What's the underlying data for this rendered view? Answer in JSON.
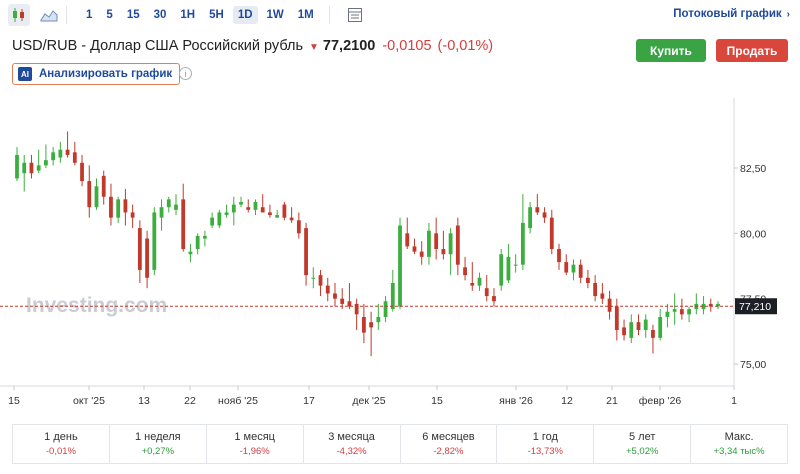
{
  "toolbar": {
    "timeframes": [
      "1",
      "5",
      "15",
      "30",
      "1H",
      "5H",
      "1D",
      "1W",
      "1M"
    ],
    "active_timeframe": "1D",
    "stream_link": "Потоковый график"
  },
  "instrument": {
    "name": "USD/RUB - Доллар США Российский рубль",
    "price": "77,2100",
    "change": "-0,0105",
    "change_pct": "(-0,01%)"
  },
  "actions": {
    "buy": "Купить",
    "sell": "Продать",
    "analyze": "Анализировать график",
    "ai_badge": "AI"
  },
  "chart_data": {
    "type": "candlestick",
    "watermark": "Investing.com",
    "y_ticks": [
      "82,50",
      "80,00",
      "77,50",
      "75,00"
    ],
    "y_tick_values": [
      82.5,
      80.0,
      77.5,
      75.0
    ],
    "current_label": "77,210",
    "current_value": 77.21,
    "x_ticks": [
      "15",
      "окт '25",
      "13",
      "22",
      "нояб '25",
      "17",
      "дек '25",
      "15",
      "янв '26",
      "12",
      "21",
      "февр '26",
      "1"
    ],
    "colors": {
      "up": "#3cae3f",
      "down": "#c0392b",
      "price_line": "#c0392b"
    },
    "candles": [
      {
        "o": 82.1,
        "h": 83.3,
        "l": 82.0,
        "c": 83.0
      },
      {
        "o": 82.3,
        "h": 83.0,
        "l": 81.6,
        "c": 82.7
      },
      {
        "o": 82.7,
        "h": 83.0,
        "l": 82.1,
        "c": 82.3
      },
      {
        "o": 82.4,
        "h": 83.2,
        "l": 82.3,
        "c": 82.6
      },
      {
        "o": 82.6,
        "h": 83.4,
        "l": 82.5,
        "c": 82.8
      },
      {
        "o": 82.8,
        "h": 83.3,
        "l": 82.6,
        "c": 83.1
      },
      {
        "o": 82.9,
        "h": 83.5,
        "l": 82.7,
        "c": 83.2
      },
      {
        "o": 83.2,
        "h": 83.9,
        "l": 82.9,
        "c": 83.0
      },
      {
        "o": 83.1,
        "h": 83.5,
        "l": 82.6,
        "c": 82.7
      },
      {
        "o": 82.7,
        "h": 83.0,
        "l": 81.8,
        "c": 82.0
      },
      {
        "o": 82.0,
        "h": 82.6,
        "l": 80.6,
        "c": 81.0
      },
      {
        "o": 81.0,
        "h": 82.1,
        "l": 80.9,
        "c": 81.8
      },
      {
        "o": 82.2,
        "h": 82.4,
        "l": 81.1,
        "c": 81.4
      },
      {
        "o": 81.4,
        "h": 81.9,
        "l": 80.3,
        "c": 80.6
      },
      {
        "o": 80.6,
        "h": 81.4,
        "l": 80.4,
        "c": 81.3
      },
      {
        "o": 81.3,
        "h": 81.7,
        "l": 80.3,
        "c": 80.8
      },
      {
        "o": 80.8,
        "h": 81.1,
        "l": 80.2,
        "c": 80.6
      },
      {
        "o": 80.2,
        "h": 80.5,
        "l": 78.1,
        "c": 78.6
      },
      {
        "o": 79.8,
        "h": 80.1,
        "l": 77.9,
        "c": 78.3
      },
      {
        "o": 78.6,
        "h": 81.0,
        "l": 78.4,
        "c": 80.8
      },
      {
        "o": 80.6,
        "h": 81.3,
        "l": 80.1,
        "c": 81.0
      },
      {
        "o": 81.0,
        "h": 81.4,
        "l": 80.8,
        "c": 81.3
      },
      {
        "o": 80.9,
        "h": 81.5,
        "l": 80.7,
        "c": 81.1
      },
      {
        "o": 81.3,
        "h": 81.9,
        "l": 79.3,
        "c": 79.4
      },
      {
        "o": 79.2,
        "h": 79.6,
        "l": 78.9,
        "c": 79.3
      },
      {
        "o": 79.4,
        "h": 80.0,
        "l": 79.2,
        "c": 79.9
      },
      {
        "o": 79.8,
        "h": 80.1,
        "l": 79.5,
        "c": 79.9
      },
      {
        "o": 80.3,
        "h": 80.8,
        "l": 80.2,
        "c": 80.6
      },
      {
        "o": 80.3,
        "h": 80.9,
        "l": 80.2,
        "c": 80.8
      },
      {
        "o": 80.7,
        "h": 81.1,
        "l": 80.6,
        "c": 80.8
      },
      {
        "o": 80.8,
        "h": 81.4,
        "l": 80.3,
        "c": 81.1
      },
      {
        "o": 81.1,
        "h": 81.4,
        "l": 81.0,
        "c": 81.2
      },
      {
        "o": 81.0,
        "h": 81.3,
        "l": 80.8,
        "c": 80.9
      },
      {
        "o": 80.9,
        "h": 81.3,
        "l": 80.7,
        "c": 81.2
      },
      {
        "o": 81.0,
        "h": 81.5,
        "l": 80.8,
        "c": 80.8
      },
      {
        "o": 80.8,
        "h": 81.1,
        "l": 80.6,
        "c": 80.7
      },
      {
        "o": 80.6,
        "h": 80.9,
        "l": 80.6,
        "c": 80.7
      },
      {
        "o": 81.1,
        "h": 81.2,
        "l": 80.5,
        "c": 80.6
      },
      {
        "o": 80.6,
        "h": 81.0,
        "l": 80.4,
        "c": 80.5
      },
      {
        "o": 80.5,
        "h": 80.8,
        "l": 79.8,
        "c": 80.0
      },
      {
        "o": 80.2,
        "h": 80.4,
        "l": 78.0,
        "c": 78.4
      },
      {
        "o": 78.3,
        "h": 78.7,
        "l": 77.9,
        "c": 78.3
      },
      {
        "o": 78.4,
        "h": 78.6,
        "l": 77.6,
        "c": 78.0
      },
      {
        "o": 78.0,
        "h": 78.3,
        "l": 77.4,
        "c": 77.7
      },
      {
        "o": 77.7,
        "h": 78.1,
        "l": 77.2,
        "c": 77.5
      },
      {
        "o": 77.5,
        "h": 77.9,
        "l": 77.1,
        "c": 77.3
      },
      {
        "o": 77.4,
        "h": 78.1,
        "l": 77.1,
        "c": 77.2
      },
      {
        "o": 77.3,
        "h": 77.5,
        "l": 76.3,
        "c": 76.9
      },
      {
        "o": 76.8,
        "h": 77.3,
        "l": 75.8,
        "c": 76.2
      },
      {
        "o": 76.6,
        "h": 77.0,
        "l": 75.3,
        "c": 76.4
      },
      {
        "o": 76.6,
        "h": 77.3,
        "l": 76.3,
        "c": 76.8
      },
      {
        "o": 76.8,
        "h": 77.6,
        "l": 76.6,
        "c": 77.4
      },
      {
        "o": 77.1,
        "h": 78.6,
        "l": 77.0,
        "c": 78.1
      },
      {
        "o": 77.2,
        "h": 80.6,
        "l": 77.1,
        "c": 80.3
      },
      {
        "o": 80.0,
        "h": 80.6,
        "l": 79.4,
        "c": 79.5
      },
      {
        "o": 79.5,
        "h": 79.8,
        "l": 79.2,
        "c": 79.3
      },
      {
        "o": 79.3,
        "h": 79.7,
        "l": 78.8,
        "c": 79.1
      },
      {
        "o": 79.1,
        "h": 80.4,
        "l": 78.8,
        "c": 80.1
      },
      {
        "o": 80.0,
        "h": 80.6,
        "l": 79.0,
        "c": 79.4
      },
      {
        "o": 79.4,
        "h": 80.1,
        "l": 79.0,
        "c": 79.2
      },
      {
        "o": 79.2,
        "h": 80.2,
        "l": 78.4,
        "c": 80.0
      },
      {
        "o": 80.3,
        "h": 80.6,
        "l": 78.4,
        "c": 78.8
      },
      {
        "o": 78.7,
        "h": 79.1,
        "l": 78.2,
        "c": 78.4
      },
      {
        "o": 78.1,
        "h": 78.9,
        "l": 77.8,
        "c": 78.0
      },
      {
        "o": 78.0,
        "h": 78.5,
        "l": 77.8,
        "c": 78.3
      },
      {
        "o": 77.9,
        "h": 78.4,
        "l": 77.4,
        "c": 77.6
      },
      {
        "o": 77.6,
        "h": 77.9,
        "l": 77.2,
        "c": 77.4
      },
      {
        "o": 78.0,
        "h": 79.4,
        "l": 77.8,
        "c": 79.2
      },
      {
        "o": 78.2,
        "h": 79.6,
        "l": 78.1,
        "c": 79.1
      },
      {
        "o": 78.8,
        "h": 79.2,
        "l": 78.5,
        "c": 78.8
      },
      {
        "o": 78.8,
        "h": 81.5,
        "l": 78.6,
        "c": 80.4
      },
      {
        "o": 80.2,
        "h": 81.2,
        "l": 80.0,
        "c": 81.0
      },
      {
        "o": 81.0,
        "h": 81.5,
        "l": 80.7,
        "c": 80.8
      },
      {
        "o": 80.8,
        "h": 81.0,
        "l": 80.4,
        "c": 80.6
      },
      {
        "o": 80.6,
        "h": 80.9,
        "l": 79.2,
        "c": 79.4
      },
      {
        "o": 79.4,
        "h": 79.6,
        "l": 78.6,
        "c": 78.9
      },
      {
        "o": 78.9,
        "h": 79.2,
        "l": 78.4,
        "c": 78.5
      },
      {
        "o": 78.5,
        "h": 79.0,
        "l": 78.2,
        "c": 78.8
      },
      {
        "o": 78.8,
        "h": 79.0,
        "l": 78.1,
        "c": 78.3
      },
      {
        "o": 78.3,
        "h": 78.6,
        "l": 77.9,
        "c": 78.1
      },
      {
        "o": 78.1,
        "h": 78.4,
        "l": 77.4,
        "c": 77.6
      },
      {
        "o": 77.7,
        "h": 78.1,
        "l": 77.3,
        "c": 77.5
      },
      {
        "o": 77.5,
        "h": 77.8,
        "l": 76.7,
        "c": 77.0
      },
      {
        "o": 77.2,
        "h": 77.5,
        "l": 75.9,
        "c": 76.3
      },
      {
        "o": 76.4,
        "h": 76.7,
        "l": 75.9,
        "c": 76.1
      },
      {
        "o": 76.0,
        "h": 76.9,
        "l": 75.8,
        "c": 76.6
      },
      {
        "o": 76.6,
        "h": 76.9,
        "l": 76.1,
        "c": 76.3
      },
      {
        "o": 76.3,
        "h": 76.9,
        "l": 76.0,
        "c": 76.7
      },
      {
        "o": 76.3,
        "h": 76.5,
        "l": 75.4,
        "c": 76.0
      },
      {
        "o": 76.0,
        "h": 77.1,
        "l": 75.9,
        "c": 76.8
      },
      {
        "o": 76.8,
        "h": 77.3,
        "l": 76.4,
        "c": 77.0
      },
      {
        "o": 77.0,
        "h": 77.7,
        "l": 76.5,
        "c": 77.1
      },
      {
        "o": 77.1,
        "h": 77.5,
        "l": 76.7,
        "c": 76.9
      },
      {
        "o": 76.9,
        "h": 77.2,
        "l": 76.6,
        "c": 77.1
      },
      {
        "o": 77.1,
        "h": 77.7,
        "l": 76.9,
        "c": 77.3
      },
      {
        "o": 77.1,
        "h": 77.6,
        "l": 76.9,
        "c": 77.3
      },
      {
        "o": 77.3,
        "h": 77.5,
        "l": 77.0,
        "c": 77.2
      },
      {
        "o": 77.2,
        "h": 77.4,
        "l": 77.1,
        "c": 77.3
      }
    ]
  },
  "performance": [
    {
      "period": "1 день",
      "value": "-0,01%",
      "sign": "neg"
    },
    {
      "period": "1 неделя",
      "value": "+0,27%",
      "sign": "pos"
    },
    {
      "period": "1 месяц",
      "value": "-1,96%",
      "sign": "neg"
    },
    {
      "period": "3 месяца",
      "value": "-4,32%",
      "sign": "neg"
    },
    {
      "period": "6 месяцев",
      "value": "-2,82%",
      "sign": "neg"
    },
    {
      "period": "1 год",
      "value": "-13,73%",
      "sign": "neg"
    },
    {
      "period": "5 лет",
      "value": "+5,02%",
      "sign": "pos"
    },
    {
      "period": "Макс.",
      "value": "+3,34 тыс%",
      "sign": "pos"
    }
  ]
}
